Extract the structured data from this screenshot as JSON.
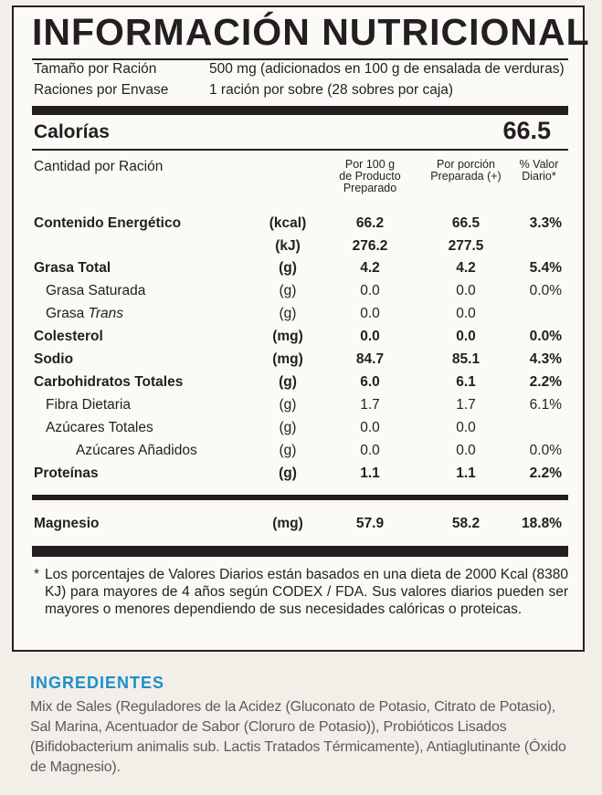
{
  "title": "INFORMACIÓN NUTRICIONAL",
  "serving": [
    {
      "label": "Tamaño por Ración",
      "value": "500 mg (adicionados en 100 g de ensalada de verduras)"
    },
    {
      "label": "Raciones por Envase",
      "value": "1 ración por sobre (28 sobres por caja)"
    }
  ],
  "calories": {
    "label": "Calorías",
    "value": "66.5"
  },
  "headers": {
    "amount": "Cantidad por Ración",
    "per100": [
      "Por 100 g",
      "de Producto",
      "Preparado"
    ],
    "portion": [
      "Por porción",
      "Preparada (+)"
    ],
    "daily": [
      "% Valor",
      "Diario*"
    ]
  },
  "nutrients": [
    {
      "name": "Contenido Energético",
      "unit": "(kcal)",
      "per100": "66.2",
      "portion": "66.5",
      "daily": "3.3%"
    },
    {
      "name": "",
      "unit": "(kJ)",
      "per100": "276.2",
      "portion": "277.5",
      "daily": ""
    },
    {
      "name": "Grasa Total",
      "unit": "(g)",
      "per100": "4.2",
      "portion": "4.2",
      "daily": "5.4%"
    },
    {
      "name": "Grasa Saturada",
      "unit": "(g)",
      "per100": "0.0",
      "portion": "0.0",
      "daily": "0.0%"
    },
    {
      "name": "Grasa ",
      "name_italic": "Trans",
      "unit": "(g)",
      "per100": "0.0",
      "portion": "0.0",
      "daily": ""
    },
    {
      "name": "Colesterol",
      "unit": "(mg)",
      "per100": "0.0",
      "portion": "0.0",
      "daily": "0.0%"
    },
    {
      "name": "Sodio",
      "unit": "(mg)",
      "per100": "84.7",
      "portion": "85.1",
      "daily": "4.3%"
    },
    {
      "name": "Carbohidratos Totales",
      "unit": "(g)",
      "per100": "6.0",
      "portion": "6.1",
      "daily": "2.2%"
    },
    {
      "name": "Fibra Dietaria",
      "unit": "(g)",
      "per100": "1.7",
      "portion": "1.7",
      "daily": "6.1%"
    },
    {
      "name": "Azúcares Totales",
      "unit": "(g)",
      "per100": "0.0",
      "portion": "0.0",
      "daily": ""
    },
    {
      "name": "Azúcares Añadidos",
      "unit": "(g)",
      "per100": "0.0",
      "portion": "0.0",
      "daily": "0.0%"
    },
    {
      "name": "Proteínas",
      "unit": "(g)",
      "per100": "1.1",
      "portion": "1.1",
      "daily": "2.2%"
    }
  ],
  "magnesium": {
    "name": "Magnesio",
    "unit": "(mg)",
    "per100": "57.9",
    "portion": "58.2",
    "daily": "18.8%"
  },
  "footnote": {
    "star": "*",
    "text": "Los porcentajes de Valores Diarios están basados en una dieta de 2000 Kcal (8380 KJ) para mayores de 4 años según CODEX / FDA. Sus valores diarios pueden ser mayores o menores dependiendo de sus necesidades calóricas o proteicas."
  },
  "ingredients": {
    "title": "INGREDIENTES",
    "text": "Mix de Sales (Reguladores de la Acidez (Gluconato de Potasio, Citrato de Potasio), Sal Marina, Acentuador de Sabor (Cloruro de Potasio)), Probióticos Lisados (Bifidobacterium animalis sub. Lactis Tratados Térmicamente), Antiaglutinante (Óxido de Magnesio)."
  },
  "colors": {
    "ink": "#231f20",
    "accent": "#1e8fc8",
    "paper": "#f1efe8"
  }
}
